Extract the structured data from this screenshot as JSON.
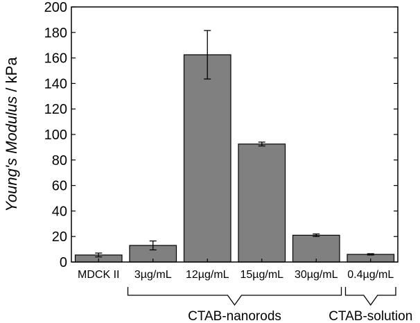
{
  "chart_data": {
    "type": "bar",
    "ylabel_italic": "Young's Modulus",
    "ylabel_unit": " / kPa",
    "categories": [
      "MDCK II",
      "3µg/mL",
      "12µg/mL",
      "15µg/mL",
      "30µg/mL",
      "0.4µg/mL"
    ],
    "values": [
      5.5,
      13,
      162.5,
      92.5,
      21,
      6
    ],
    "errors": [
      1.5,
      3.5,
      19,
      1.5,
      1,
      0.5
    ],
    "ylim": [
      0,
      200
    ],
    "yticks": [
      0,
      20,
      40,
      60,
      80,
      100,
      120,
      140,
      160,
      180,
      200
    ],
    "groups": [
      {
        "label": "CTAB-nanorods",
        "from": 1,
        "to": 4
      },
      {
        "label": "CTAB-solution",
        "from": 5,
        "to": 5
      }
    ],
    "bar_color": "#808080",
    "grid": false
  }
}
